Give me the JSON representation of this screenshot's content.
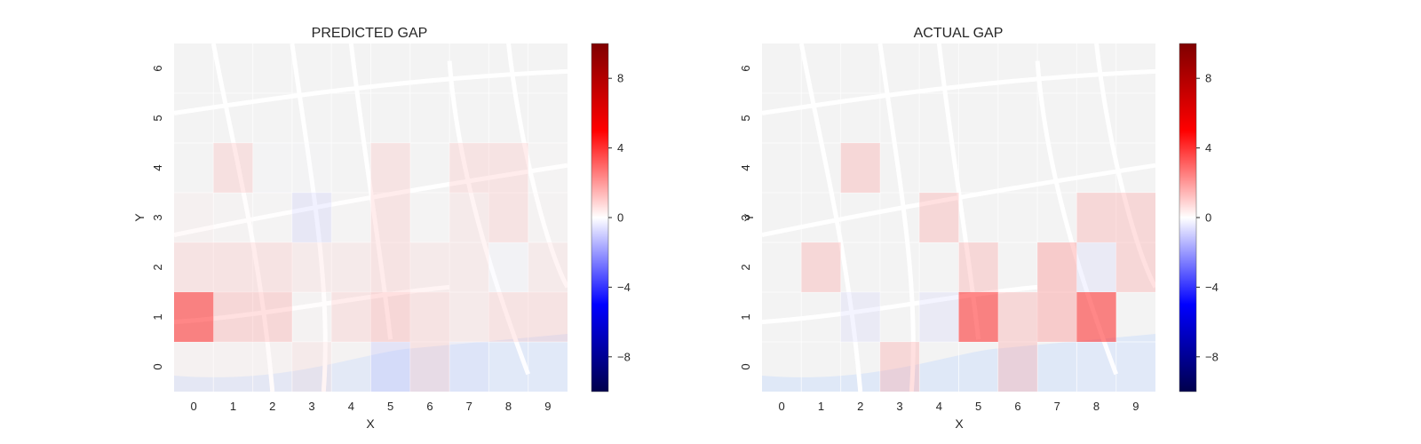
{
  "chart_data": [
    {
      "type": "heatmap",
      "title": "PREDICTED GAP",
      "xlabel": "X",
      "ylabel": "Y",
      "x_ticks": [
        "0",
        "1",
        "2",
        "3",
        "4",
        "5",
        "6",
        "7",
        "8",
        "9"
      ],
      "y_ticks": [
        "0",
        "1",
        "2",
        "3",
        "4",
        "5",
        "6"
      ],
      "background": "street map (light, semi-transparent)",
      "colormap": "seismic",
      "vmin": -10,
      "vmax": 10,
      "colorbar_ticks": [
        {
          "value": 8,
          "label": "8"
        },
        {
          "value": 4,
          "label": "4"
        },
        {
          "value": 0,
          "label": "0"
        },
        {
          "value": -4,
          "label": "−4"
        },
        {
          "value": -8,
          "label": "−8"
        }
      ],
      "cells": [
        {
          "x": 0,
          "y": 0,
          "v": 0.5
        },
        {
          "x": 1,
          "y": 0,
          "v": 0.5
        },
        {
          "x": 2,
          "y": 0,
          "v": 0.5
        },
        {
          "x": 3,
          "y": 0,
          "v": 1.0
        },
        {
          "x": 4,
          "y": 0,
          "v": 0.3
        },
        {
          "x": 5,
          "y": 0,
          "v": -1.5
        },
        {
          "x": 6,
          "y": 0,
          "v": 1.5
        },
        {
          "x": 7,
          "y": 0,
          "v": -0.8
        },
        {
          "x": 8,
          "y": 0,
          "v": -0.3
        },
        {
          "x": 9,
          "y": 0,
          "v": -0.3
        },
        {
          "x": 0,
          "y": 1,
          "v": 4.5
        },
        {
          "x": 1,
          "y": 1,
          "v": 2.0
        },
        {
          "x": 2,
          "y": 1,
          "v": 2.0
        },
        {
          "x": 3,
          "y": 1,
          "v": 0.3
        },
        {
          "x": 4,
          "y": 1,
          "v": 1.5
        },
        {
          "x": 5,
          "y": 1,
          "v": 2.0
        },
        {
          "x": 6,
          "y": 1,
          "v": 1.5
        },
        {
          "x": 7,
          "y": 1,
          "v": 1.0
        },
        {
          "x": 8,
          "y": 1,
          "v": 1.5
        },
        {
          "x": 9,
          "y": 1,
          "v": 1.5
        },
        {
          "x": 0,
          "y": 2,
          "v": 1.5
        },
        {
          "x": 1,
          "y": 2,
          "v": 1.5
        },
        {
          "x": 2,
          "y": 2,
          "v": 1.5
        },
        {
          "x": 3,
          "y": 2,
          "v": 1.0
        },
        {
          "x": 4,
          "y": 2,
          "v": 1.0
        },
        {
          "x": 5,
          "y": 2,
          "v": 1.5
        },
        {
          "x": 6,
          "y": 2,
          "v": 1.0
        },
        {
          "x": 7,
          "y": 2,
          "v": 1.0
        },
        {
          "x": 8,
          "y": 2,
          "v": -0.4
        },
        {
          "x": 9,
          "y": 2,
          "v": 1.0
        },
        {
          "x": 0,
          "y": 3,
          "v": 0.6
        },
        {
          "x": 1,
          "y": 3,
          "v": 0.3
        },
        {
          "x": 2,
          "y": 3,
          "v": 0.2
        },
        {
          "x": 3,
          "y": 3,
          "v": -1.2
        },
        {
          "x": 4,
          "y": 3,
          "v": 0.2
        },
        {
          "x": 5,
          "y": 3,
          "v": 1.5
        },
        {
          "x": 6,
          "y": 3,
          "v": 0.2
        },
        {
          "x": 7,
          "y": 3,
          "v": 1.0
        },
        {
          "x": 8,
          "y": 3,
          "v": 1.5
        },
        {
          "x": 9,
          "y": 3,
          "v": 0.3
        },
        {
          "x": 1,
          "y": 4,
          "v": 1.6
        },
        {
          "x": 2,
          "y": 4,
          "v": -0.2
        },
        {
          "x": 3,
          "y": 4,
          "v": -0.1
        },
        {
          "x": 5,
          "y": 4,
          "v": 1.5
        },
        {
          "x": 7,
          "y": 4,
          "v": 1.5
        },
        {
          "x": 8,
          "y": 4,
          "v": 1.5
        },
        {
          "x": 9,
          "y": 4,
          "v": 0.2
        }
      ]
    },
    {
      "type": "heatmap",
      "title": "ACTUAL GAP",
      "xlabel": "X",
      "ylabel": "Y",
      "x_ticks": [
        "0",
        "1",
        "2",
        "3",
        "4",
        "5",
        "6",
        "7",
        "8",
        "9"
      ],
      "y_ticks": [
        "0",
        "1",
        "2",
        "3",
        "4",
        "5",
        "6"
      ],
      "background": "street map (light, semi-transparent)",
      "colormap": "seismic",
      "vmin": -10,
      "vmax": 10,
      "colorbar_ticks": [
        {
          "value": 8,
          "label": "8"
        },
        {
          "value": 4,
          "label": "4"
        },
        {
          "value": 0,
          "label": "0"
        },
        {
          "value": -4,
          "label": "−4"
        },
        {
          "value": -8,
          "label": "−8"
        }
      ],
      "cells": [
        {
          "x": 3,
          "y": 0,
          "v": 2.0
        },
        {
          "x": 6,
          "y": 0,
          "v": 2.0
        },
        {
          "x": 8,
          "y": 0,
          "v": -0.3
        },
        {
          "x": 9,
          "y": 0,
          "v": -0.3
        },
        {
          "x": 2,
          "y": 1,
          "v": -1.0
        },
        {
          "x": 4,
          "y": 1,
          "v": -1.0
        },
        {
          "x": 5,
          "y": 1,
          "v": 4.5
        },
        {
          "x": 6,
          "y": 1,
          "v": 2.0
        },
        {
          "x": 7,
          "y": 1,
          "v": 2.5
        },
        {
          "x": 8,
          "y": 1,
          "v": 4.5
        },
        {
          "x": 1,
          "y": 2,
          "v": 2.0
        },
        {
          "x": 5,
          "y": 2,
          "v": 2.0
        },
        {
          "x": 7,
          "y": 2,
          "v": 2.5
        },
        {
          "x": 8,
          "y": 2,
          "v": -1.0
        },
        {
          "x": 9,
          "y": 2,
          "v": 2.0
        },
        {
          "x": 4,
          "y": 3,
          "v": 2.0
        },
        {
          "x": 8,
          "y": 3,
          "v": 2.0
        },
        {
          "x": 9,
          "y": 3,
          "v": 2.0
        },
        {
          "x": 2,
          "y": 4,
          "v": 2.0
        }
      ]
    }
  ]
}
